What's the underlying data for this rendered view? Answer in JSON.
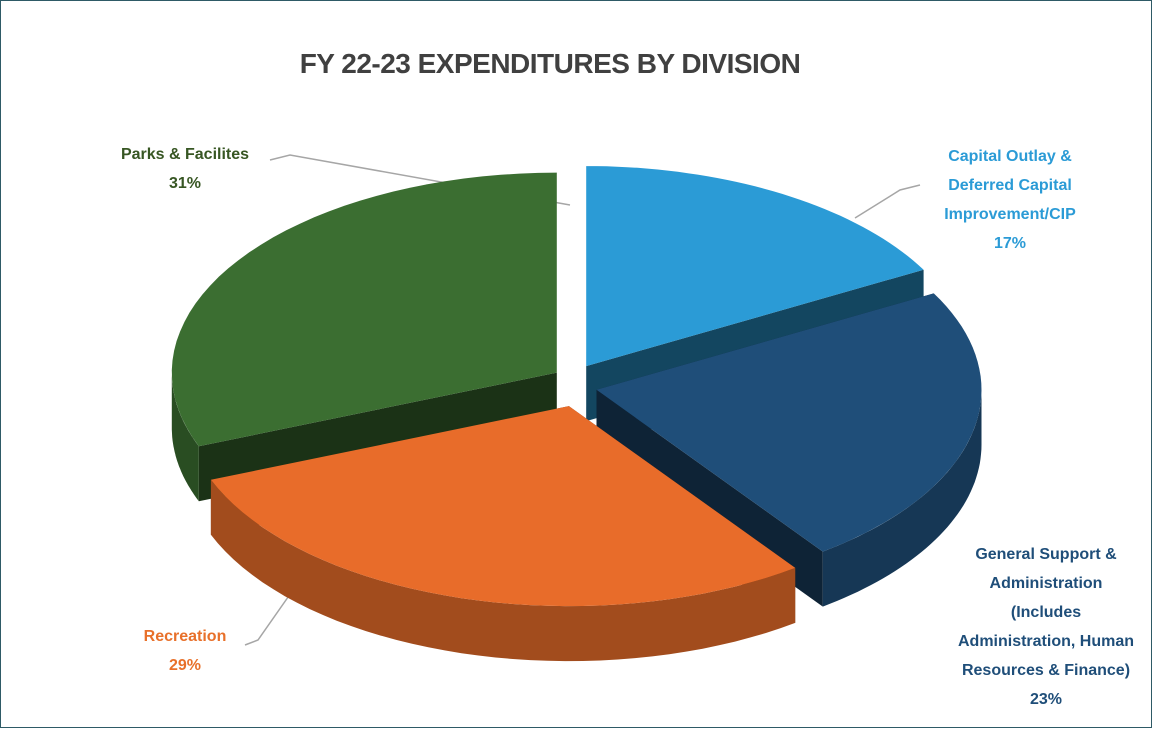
{
  "chart_data": {
    "type": "pie",
    "title": "FY 22-23 EXPENDITURES BY DIVISION",
    "categories": [
      "Capital Outlay & Deferred Capital Improvement/CIP",
      "General Support & Administration (Includes Administration, Human Resources & Finance)",
      "Recreation",
      "Parks & Facilites"
    ],
    "values": [
      17,
      23,
      29,
      31
    ],
    "value_labels": [
      "17%",
      "23%",
      "29%",
      "31%"
    ],
    "colors": [
      "#2b9bd6",
      "#1f4e79",
      "#e86c2a",
      "#3b6e31"
    ],
    "label_colors": [
      "#2b9bd6",
      "#1f4e79",
      "#e8702a",
      "#375623"
    ]
  }
}
